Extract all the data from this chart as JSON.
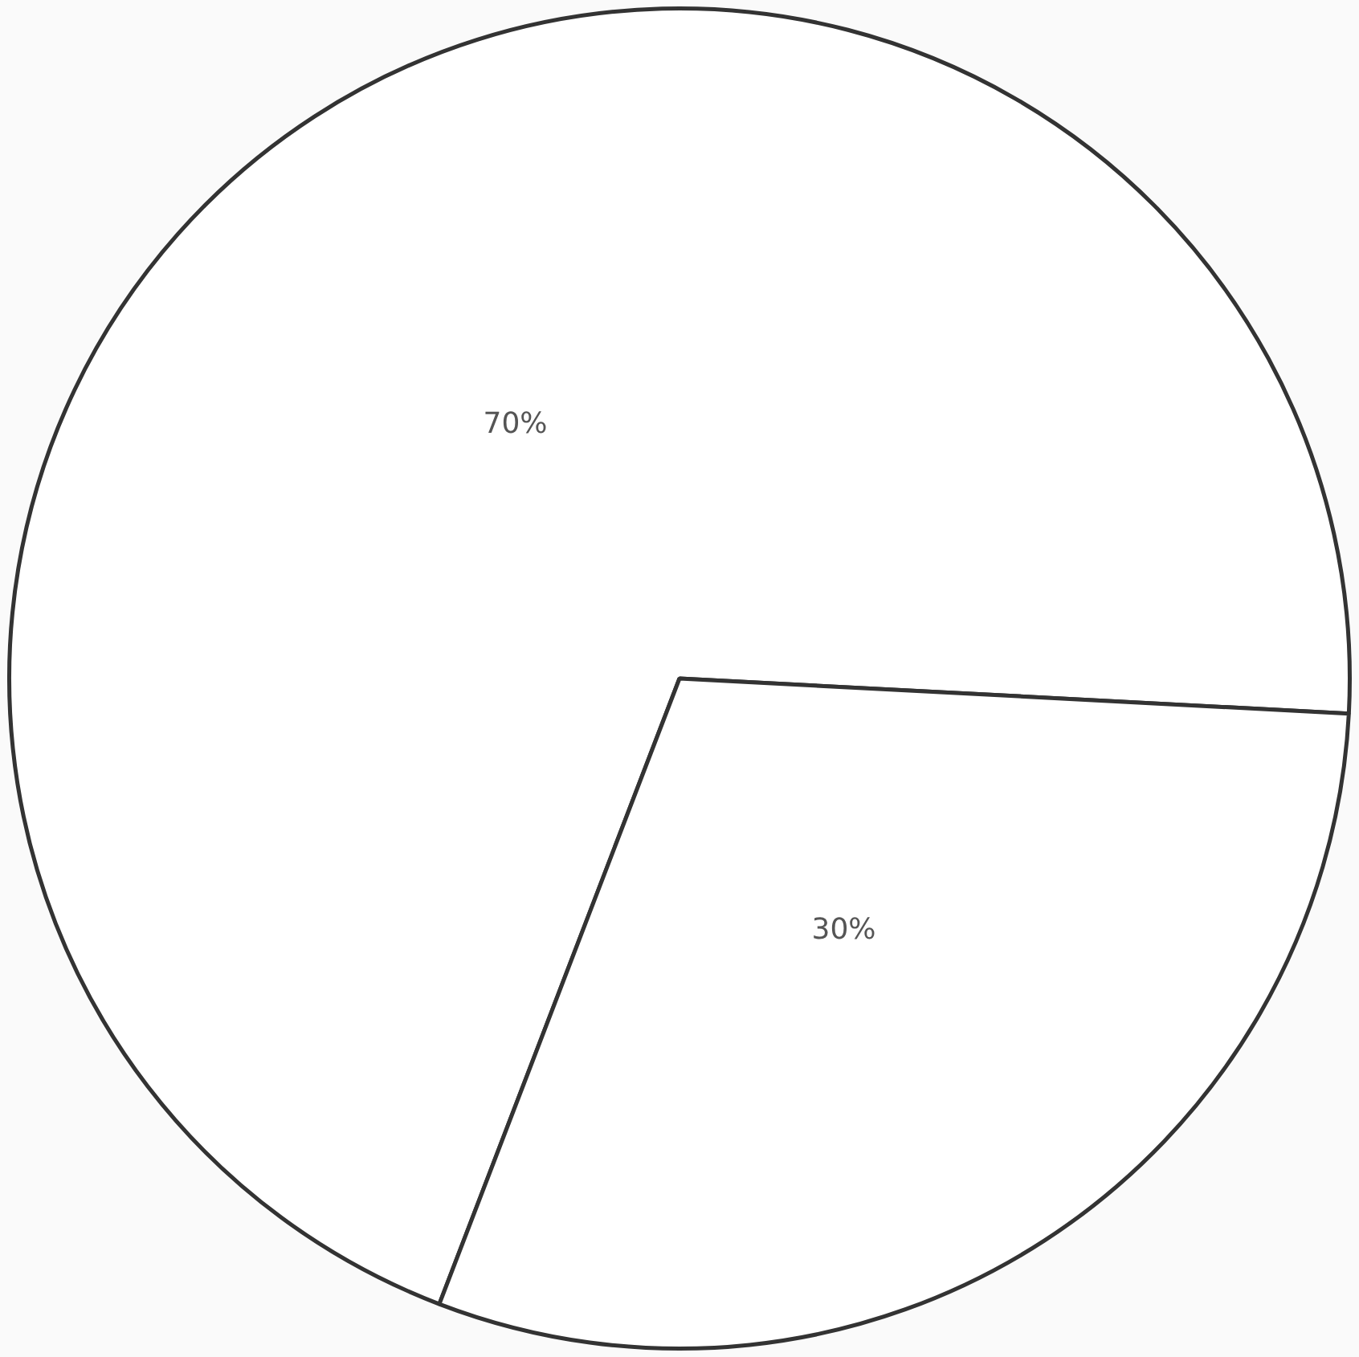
{
  "chart_data": {
    "type": "pie",
    "categories": [
      null,
      null
    ],
    "values": [
      70,
      30
    ],
    "colors": [
      "#ffffff",
      "#ffffff"
    ],
    "value_labels": [
      "70%",
      "30%"
    ],
    "legend": false
  }
}
